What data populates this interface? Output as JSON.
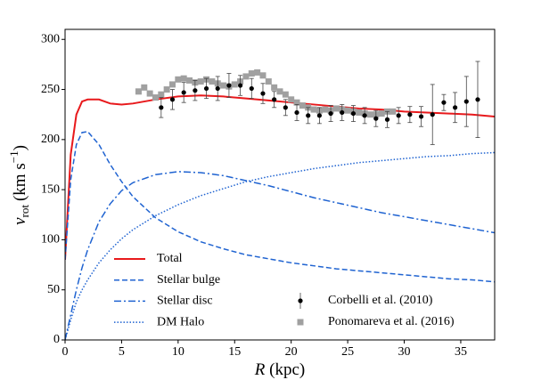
{
  "chart_data": {
    "type": "line",
    "xlabel": {
      "main": "R",
      "unit": "(kpc)"
    },
    "ylabel": {
      "main": "v",
      "sub": "rot",
      "unit": "(km s",
      "sup": "−1",
      "close": ")"
    },
    "xlim": [
      0,
      38
    ],
    "xticks": [
      0,
      5,
      10,
      15,
      20,
      25,
      30,
      35
    ],
    "ylim": [
      0,
      310
    ],
    "yticks": [
      0,
      50,
      100,
      150,
      200,
      250,
      300
    ],
    "series": [
      {
        "name": "Total",
        "type": "line",
        "style": "solid",
        "color": "#e8191c",
        "x": [
          0,
          0.5,
          1,
          1.5,
          2,
          3,
          4,
          5,
          6,
          8,
          10,
          12,
          14,
          16,
          18,
          20,
          22,
          24,
          26,
          28,
          30,
          32,
          34,
          36,
          38
        ],
        "values": [
          80,
          185,
          225,
          238,
          240,
          240,
          236,
          235,
          236,
          240,
          243,
          244,
          243,
          241,
          239,
          237,
          235,
          233,
          231,
          230,
          228,
          227,
          226,
          225,
          223
        ]
      },
      {
        "name": "Stellar bulge",
        "type": "line",
        "style": "dashed",
        "color": "#1f63d1",
        "x": [
          0,
          0.5,
          1,
          1.5,
          2,
          3,
          4,
          5,
          6,
          8,
          10,
          12,
          14,
          16,
          18,
          20,
          22,
          24,
          26,
          28,
          30,
          32,
          34,
          36,
          38
        ],
        "values": [
          80,
          160,
          195,
          207,
          208,
          195,
          175,
          158,
          143,
          122,
          108,
          98,
          91,
          85,
          81,
          77,
          74,
          71,
          69,
          67,
          65,
          63,
          61,
          60,
          58
        ]
      },
      {
        "name": "Stellar disc",
        "type": "line",
        "style": "dashdot",
        "color": "#1f63d1",
        "x": [
          0,
          0.5,
          1,
          1.5,
          2,
          3,
          4,
          5,
          6,
          8,
          10,
          12,
          14,
          16,
          18,
          20,
          22,
          24,
          26,
          28,
          30,
          32,
          34,
          36,
          38
        ],
        "values": [
          0,
          25,
          50,
          72,
          90,
          118,
          136,
          149,
          157,
          165,
          168,
          167,
          164,
          159,
          154,
          148,
          142,
          137,
          132,
          127,
          123,
          119,
          115,
          111,
          107
        ]
      },
      {
        "name": "DM Halo",
        "type": "line",
        "style": "dotted",
        "color": "#1f63d1",
        "x": [
          0,
          0.5,
          1,
          1.5,
          2,
          3,
          4,
          5,
          6,
          8,
          10,
          12,
          14,
          16,
          18,
          20,
          22,
          24,
          26,
          28,
          30,
          32,
          34,
          36,
          38
        ],
        "values": [
          0,
          20,
          38,
          50,
          60,
          77,
          90,
          101,
          110,
          124,
          135,
          144,
          151,
          158,
          163,
          167,
          171,
          174,
          177,
          179,
          181,
          183,
          184,
          186,
          187
        ]
      },
      {
        "name": "Ponomareva et al. (2016)",
        "type": "scatter",
        "color": "#a0a0a0",
        "x": [
          6.5,
          7,
          7.5,
          8,
          8.5,
          9,
          9.5,
          10,
          10.5,
          11,
          11.5,
          12,
          12.5,
          13,
          13.5,
          14,
          14.5,
          15,
          15.5,
          16,
          16.5,
          17,
          17.5,
          18,
          18.5,
          19,
          19.5,
          20,
          20.5,
          21,
          21.5,
          22,
          22.5,
          23,
          23.5,
          24,
          24.5,
          25,
          25.5,
          26,
          26.5,
          27,
          27.5,
          28,
          28.5,
          29
        ],
        "values": [
          248,
          252,
          246,
          242,
          245,
          250,
          255,
          260,
          261,
          259,
          257,
          258,
          260,
          258,
          256,
          254,
          253,
          255,
          258,
          263,
          266,
          267,
          264,
          258,
          252,
          248,
          245,
          240,
          237,
          234,
          232,
          230,
          229,
          230,
          229,
          231,
          230,
          229,
          228,
          227,
          226,
          225,
          225,
          226,
          228,
          228
        ]
      },
      {
        "name": "Corbelli et al. (2010)",
        "type": "errorbar",
        "color": "#000000",
        "x": [
          8.5,
          9.5,
          10.5,
          11.5,
          12.5,
          13.5,
          14.5,
          15.5,
          16.5,
          17.5,
          18.5,
          19.5,
          20.5,
          21.5,
          22.5,
          23.5,
          24.5,
          25.5,
          26.5,
          27.5,
          28.5,
          29.5,
          30.5,
          31.5,
          32.5,
          33.5,
          34.5,
          35.5,
          36.5
        ],
        "values": [
          232,
          240,
          247,
          249,
          251,
          251,
          254,
          254,
          251,
          246,
          240,
          232,
          227,
          224,
          224,
          226,
          227,
          226,
          224,
          221,
          220,
          224,
          225,
          223,
          225,
          237,
          232,
          238,
          240
        ],
        "errors": [
          10,
          10,
          10,
          10,
          10,
          12,
          12,
          10,
          10,
          10,
          8,
          8,
          8,
          8,
          8,
          8,
          8,
          8,
          8,
          8,
          8,
          8,
          8,
          10,
          30,
          8,
          15,
          25,
          38
        ]
      }
    ]
  }
}
